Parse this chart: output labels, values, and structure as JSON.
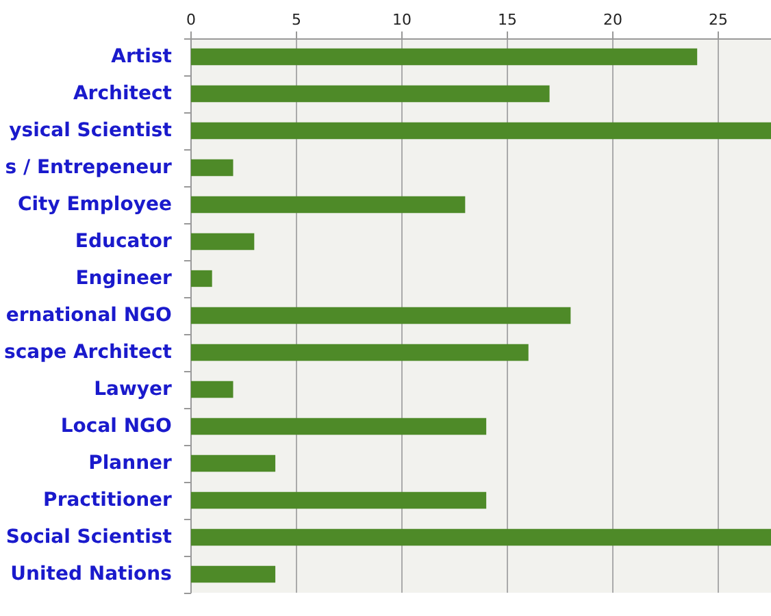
{
  "chart_data": {
    "type": "bar",
    "orientation": "horizontal",
    "categories": [
      "Artist",
      "Architect",
      "ysical Scientist",
      "s / Entrepeneur",
      "City Employee",
      "Educator",
      "Engineer",
      "ernational NGO",
      "scape Architect",
      "Lawyer",
      "Local NGO",
      "Planner",
      "Practitioner",
      "Social Scientist",
      "United Nations"
    ],
    "values": [
      24,
      17,
      27.5,
      2,
      13,
      3,
      1,
      18,
      16,
      2,
      14,
      4,
      14,
      27.5,
      4
    ],
    "color": "#4e8a28",
    "xlim": [
      0,
      27.5
    ],
    "xticks": [
      0,
      5,
      10,
      15,
      20,
      25
    ],
    "grid": "x"
  }
}
